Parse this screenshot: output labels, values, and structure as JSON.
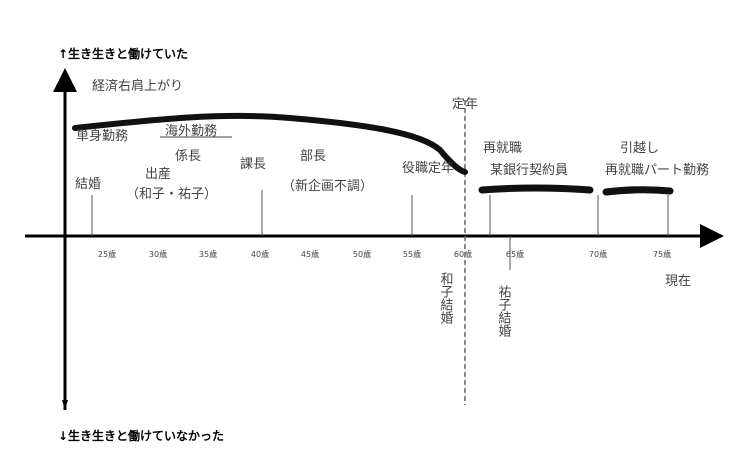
{
  "axis": {
    "top_label": "↑生き生きと働けていた",
    "bottom_label": "↓生き生きと働けていなかった",
    "ages": [
      "25歳",
      "30歳",
      "35歳",
      "40歳",
      "45歳",
      "50歳",
      "55歳",
      "60歳",
      "65歳",
      "70歳",
      "75歳"
    ]
  },
  "notes": {
    "economy": "経済右肩上がり",
    "single": "単身勤務",
    "overseas": "海外勤務",
    "chief": "係長",
    "marriage": "結婚",
    "birth": "出産",
    "children": "（和子・祐子）",
    "manager": "課長",
    "director": "部長",
    "director_note": "（新企画不調）",
    "post_retire": "役職定年",
    "retire": "定年",
    "kazuko": "和子結婚",
    "reemploy": "再就職",
    "bank": "某銀行契約員",
    "yuko": "祐子結婚",
    "move": "引越し",
    "part": "再就職パート勤務",
    "now": "現在"
  }
}
